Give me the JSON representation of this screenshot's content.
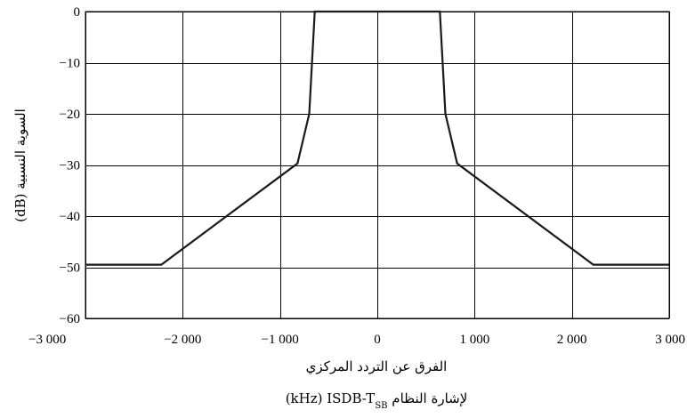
{
  "chart_data": {
    "type": "line",
    "title": "",
    "xlabel": "الفرق عن التردد المركزي",
    "xlabel_line2_prefix": "لإشارة النظام",
    "xlabel_line2_system": "ISDB-T",
    "xlabel_line2_subscript": "SB",
    "xlabel_line2_unit": "(kHz)",
    "ylabel": "السوية النسبية (dB)",
    "xlim": [
      -3000,
      3000
    ],
    "ylim": [
      -60,
      0
    ],
    "xticks": [
      -3000,
      -2000,
      -1000,
      0,
      1000,
      2000,
      3000
    ],
    "xtick_labels": [
      "−3 000",
      "−2 000",
      "−1 000",
      "0",
      "1 000",
      "2 000",
      "3 000"
    ],
    "yticks": [
      0,
      -10,
      -20,
      -30,
      -40,
      -50,
      -60
    ],
    "ytick_labels": [
      "0",
      "−10",
      "−20",
      "−30",
      "−40",
      "−50",
      "−60"
    ],
    "grid": true,
    "line_color": "#1a1a1a",
    "series": [
      {
        "x": [
          -3000,
          -2220,
          -820,
          -700,
          -643,
          643,
          700,
          820,
          2220,
          3000
        ],
        "y": [
          -49.5,
          -49.5,
          -29.7,
          -20,
          0,
          0,
          -20,
          -29.7,
          -49.5,
          -49.5
        ]
      }
    ]
  }
}
